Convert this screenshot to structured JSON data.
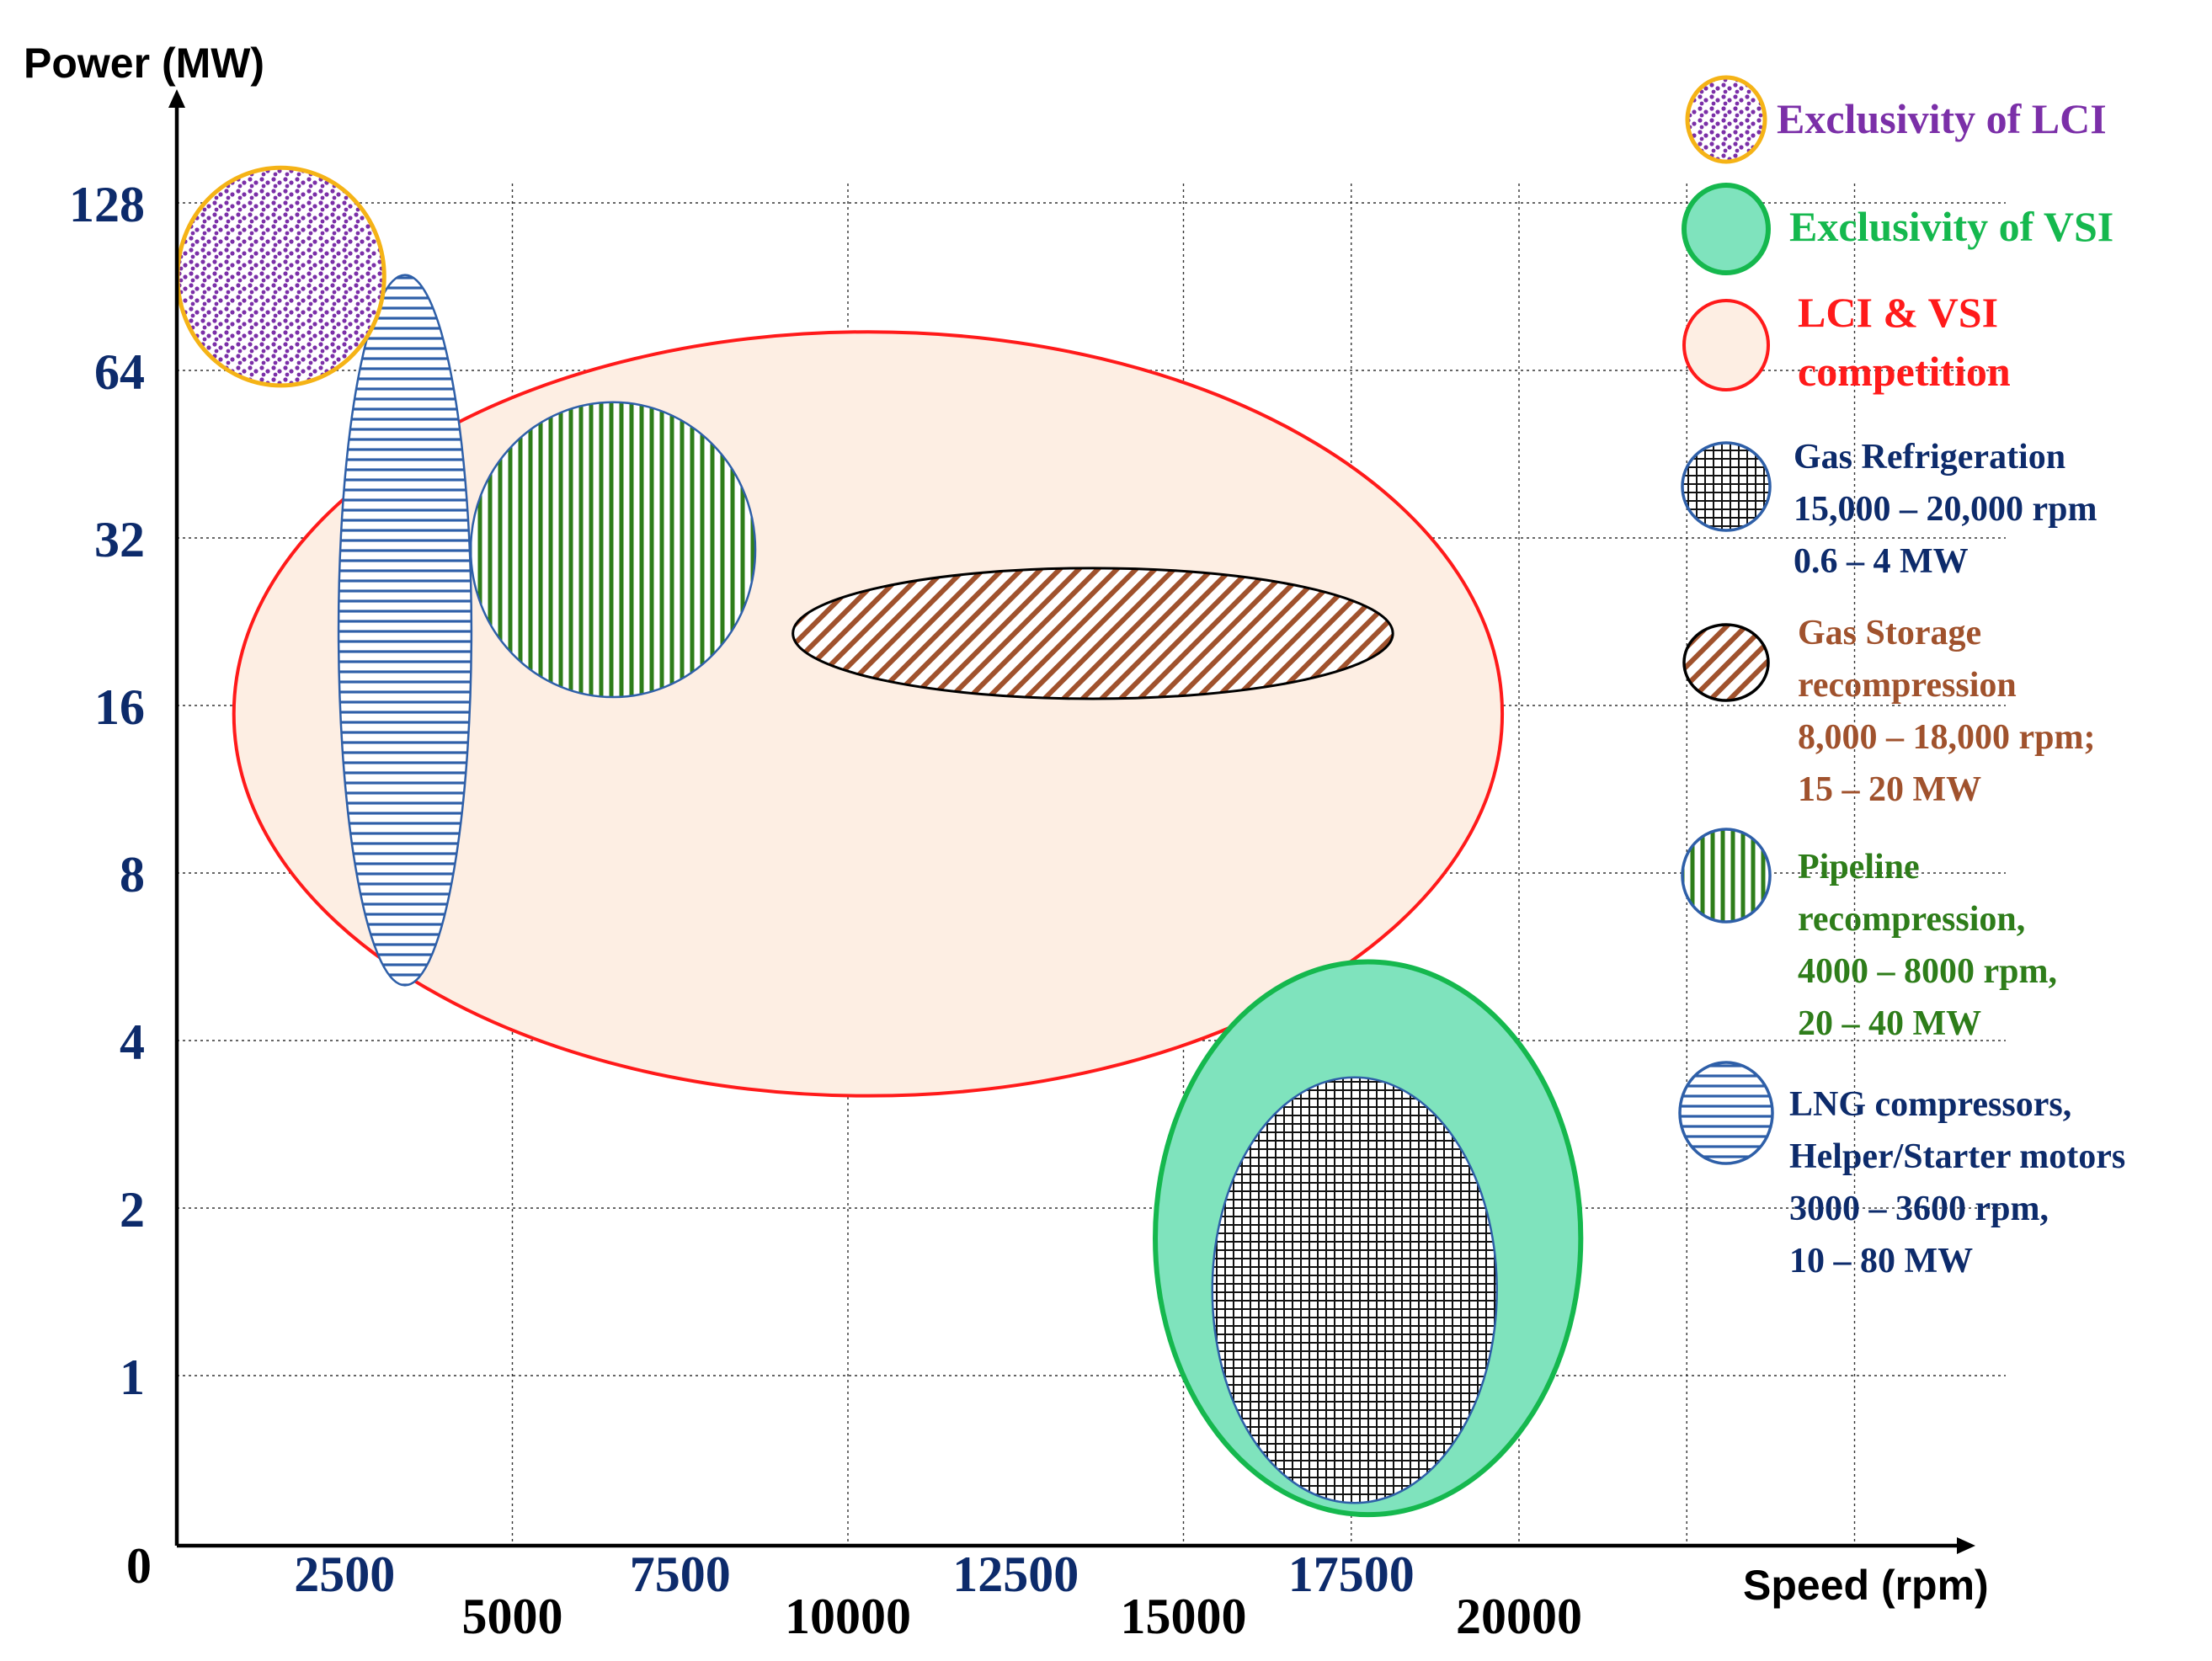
{
  "chart_data": {
    "type": "scatter",
    "subtype": "region-ellipses",
    "ylabel": "Power  (MW)",
    "xlabel": "Speed (rpm)",
    "y_origin_label": "0",
    "y_scale": "log2",
    "y_ticks": [
      1,
      2,
      4,
      8,
      16,
      32,
      64,
      128
    ],
    "x_ticks_upper": [
      2500,
      7500,
      12500,
      17500
    ],
    "x_ticks_lower": [
      5000,
      10000,
      15000,
      20000
    ],
    "x_grid": [
      5000,
      10000,
      15000,
      17500,
      20000,
      22500,
      25000
    ],
    "colors": {
      "axis": "#000000",
      "ytick": "#0d2b6b",
      "xtick_upper": "#0d2b6b",
      "xtick_lower": "#000000",
      "purple": "#7b2fa8",
      "orange_outline": "#f5b316",
      "green": "#15b84e",
      "green_fill": "#7fe3bd",
      "red": "#ff1a1a",
      "peach": "#fdeee3",
      "blue": "#2e5fa8",
      "brown": "#a0522d",
      "dark_green": "#2e7d1a",
      "navy": "#0d2b6b"
    },
    "regions": [
      {
        "name": "LCI & VSI competition",
        "pattern": "solid-peach",
        "cx_rpm": 10300,
        "cy_log2": 3.95,
        "rx_rpm": 9450,
        "ry_log2": 2.28
      },
      {
        "name": "Exclusivity of VSI",
        "pattern": "solid-green",
        "cx_rpm": 17750,
        "cy_log2": 0.82,
        "rx_rpm": 3170,
        "ry_log2": 1.65
      },
      {
        "name": "Gas Refrigeration",
        "pattern": "grid",
        "cx_rpm": 17550,
        "cy_log2": 0.51,
        "rx_rpm": 2120,
        "ry_log2": 1.27
      },
      {
        "name": "Gas Storage recompression",
        "pattern": "diagonal",
        "cx_rpm": 13650,
        "cy_log2": 4.43,
        "rx_rpm": 4470,
        "ry_log2": 0.39
      },
      {
        "name": "Pipeline recompression",
        "pattern": "vertical",
        "cx_rpm": 6500,
        "cy_log2": 4.93,
        "rx_rpm": 2120,
        "ry_log2": 0.88
      },
      {
        "name": "LNG compressors, Helper/Starter motors",
        "pattern": "horizontal",
        "cx_rpm": 3400,
        "cy_log2": 4.45,
        "rx_rpm": 990,
        "ry_log2": 2.12
      },
      {
        "name": "Exclusivity of LCI",
        "pattern": "dots",
        "cx_rpm": 1550,
        "cy_log2": 6.56,
        "rx_rpm": 1540,
        "ry_log2": 0.65
      }
    ]
  },
  "legend": [
    {
      "pattern": "dots",
      "color": "#7b2fa8",
      "lines": [
        "Exclusivity of LCI"
      ]
    },
    {
      "pattern": "solid-green",
      "color": "#15b84e",
      "lines": [
        "Exclusivity of VSI"
      ]
    },
    {
      "pattern": "solid-peach",
      "color": "#ff1a1a",
      "lines": [
        "LCI & VSI",
        "competition"
      ]
    },
    {
      "pattern": "grid",
      "color": "#0d2b6b",
      "lines": [
        "Gas Refrigeration",
        "15,000 – 20,000 rpm",
        "0.6 – 4 MW"
      ]
    },
    {
      "pattern": "diagonal",
      "color": "#a0522d",
      "lines": [
        "Gas Storage",
        "recompression",
        "8,000 – 18,000 rpm;",
        "15 – 20 MW"
      ]
    },
    {
      "pattern": "vertical",
      "color": "#2e7d1a",
      "lines": [
        "Pipeline",
        "recompression,",
        " 4000 – 8000 rpm,",
        "20 – 40 MW"
      ]
    },
    {
      "pattern": "horizontal",
      "color": "#0d2b6b",
      "lines": [
        "LNG compressors,",
        "Helper/Starter motors",
        "3000 – 3600 rpm,",
        "10 – 80 MW"
      ]
    }
  ]
}
